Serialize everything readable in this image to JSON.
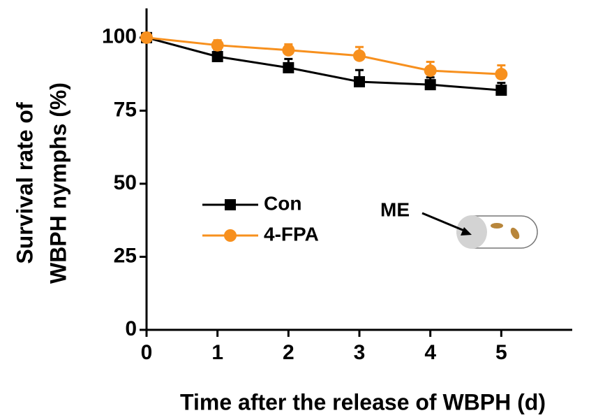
{
  "chart_data": {
    "type": "line",
    "x_label": "Time after the release of WBPH (d)",
    "y_label": [
      "Survival rate of",
      "WBPH nymphs (%)"
    ],
    "x": [
      0,
      1,
      2,
      3,
      4,
      5
    ],
    "series": [
      {
        "name": "Con",
        "color": "#000000",
        "marker": "square",
        "values": [
          100,
          93.5,
          89.7,
          84.9,
          83.9,
          82
        ],
        "errors": [
          0,
          2.4,
          3,
          4,
          2.5,
          2.5
        ]
      },
      {
        "name": "4-FPA",
        "color": "#f7901e",
        "marker": "circle",
        "values": [
          100,
          97.4,
          95.7,
          93.8,
          88.7,
          87.5
        ],
        "errors": [
          0,
          1.7,
          2,
          3,
          3,
          3
        ]
      }
    ],
    "xlim": [
      0,
      6
    ],
    "xticks": [
      0,
      1,
      2,
      3,
      4,
      5
    ],
    "ylim": [
      0,
      110
    ],
    "yticks": [
      0,
      25,
      50,
      75,
      100
    ],
    "legend": "left",
    "annotation": "ME"
  }
}
